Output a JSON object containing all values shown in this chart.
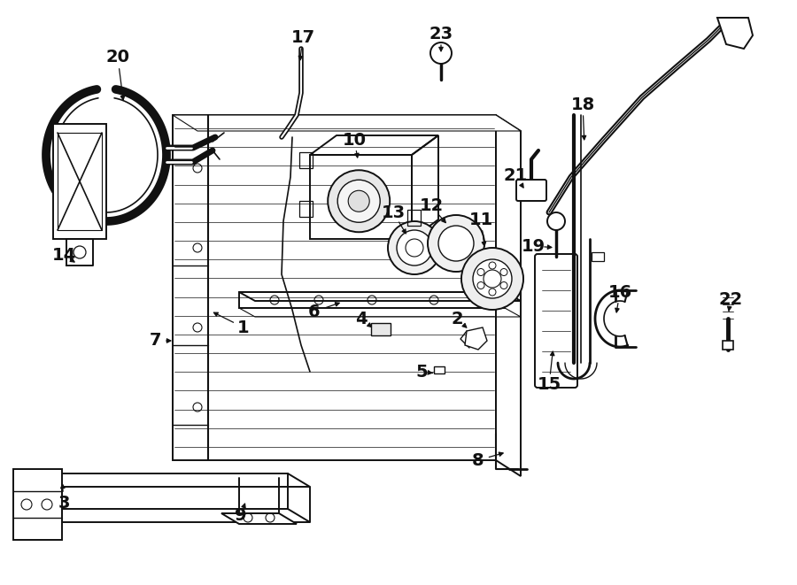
{
  "background_color": "#ffffff",
  "line_color": "#111111",
  "figsize": [
    9.0,
    6.61
  ],
  "dpi": 100
}
